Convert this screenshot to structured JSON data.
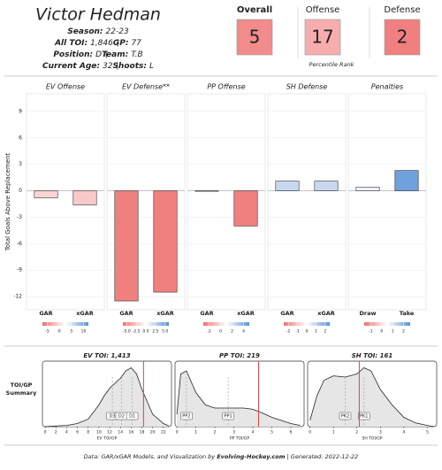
{
  "header": {
    "name": "Victor Hedman",
    "lines": [
      [
        {
          "label": "Season:",
          "value": "22-23"
        }
      ],
      [
        {
          "label": "All TOI:",
          "value": "1,846"
        },
        {
          "label": "GP:",
          "value": "77"
        }
      ],
      [
        {
          "label": "Position:",
          "value": "D"
        },
        {
          "label": "Team:",
          "value": "T.B"
        }
      ],
      [
        {
          "label": "Current Age:",
          "value": "32"
        },
        {
          "label": "Shoots:",
          "value": "L"
        }
      ]
    ]
  },
  "percentiles": {
    "caption": "Percentile Rank",
    "items": [
      {
        "label": "Overall",
        "value": 5,
        "color": "#f28b8b"
      },
      {
        "label": "Offense",
        "value": 17,
        "color": "#f7adad"
      },
      {
        "label": "Defense",
        "value": 2,
        "color": "#f08080"
      }
    ]
  },
  "summary_label": [
    "TOI/GP",
    "Summary"
  ],
  "chart_data": [
    {
      "type": "bar",
      "title": "EV Offense",
      "ylabel": "Total Goals Above Replacement",
      "categories": [
        "GAR",
        "xGAR"
      ],
      "values": [
        -0.8,
        -1.6
      ],
      "colors": [
        "#fbd3d3",
        "#f9c9c9"
      ],
      "ylim": [
        -13.5,
        11
      ],
      "yticks": [
        -12,
        -9,
        -6,
        -3,
        0,
        3,
        6,
        9
      ],
      "grid": true,
      "scale_lim": [
        -7,
        12
      ],
      "scale_ticks": [
        -5,
        0,
        5,
        10
      ]
    },
    {
      "type": "bar",
      "title": "EV Defense**",
      "categories": [
        "GAR",
        "xGAR"
      ],
      "values": [
        -12.5,
        -11.5
      ],
      "colors": [
        "#f08080",
        "#f08080"
      ],
      "ylim": [
        -13.5,
        11
      ],
      "yticks": [
        -12,
        -9,
        -6,
        -3,
        0,
        3,
        6,
        9
      ],
      "grid": true,
      "scale_lim": [
        -6,
        6
      ],
      "scale_ticks": [
        {
          "value": -5,
          "label": "-5.0"
        },
        {
          "value": -2.5,
          "label": "-2.5"
        },
        {
          "value": 0,
          "label": "0.0"
        },
        {
          "value": 2.5,
          "label": "2.5"
        },
        {
          "value": 5,
          "label": "5.0"
        }
      ]
    },
    {
      "type": "bar",
      "title": "PP Offense",
      "categories": [
        "GAR",
        "xGAR"
      ],
      "values": [
        0,
        -4
      ],
      "colors": [
        "#f5f5f5",
        "#f08080"
      ],
      "ylim": [
        -13.5,
        11
      ],
      "yticks": [
        -12,
        -9,
        -6,
        -3,
        0,
        3,
        6,
        9
      ],
      "grid": true,
      "scale_lim": [
        -3,
        5
      ],
      "scale_ticks": [
        -2,
        0,
        2,
        4
      ]
    },
    {
      "type": "bar",
      "title": "SH Defense",
      "categories": [
        "GAR",
        "xGAR"
      ],
      "values": [
        1.1,
        1.1
      ],
      "colors": [
        "#c8d7ef",
        "#c8d7ef"
      ],
      "ylim": [
        -13.5,
        11
      ],
      "yticks": [
        -12,
        -9,
        -6,
        -3,
        0,
        3,
        6,
        9
      ],
      "grid": true,
      "scale_lim": [
        -2.5,
        2.5
      ],
      "scale_ticks": [
        -2,
        -1,
        0,
        1,
        2
      ]
    },
    {
      "type": "bar",
      "title": "Penalties",
      "categories": [
        "Draw",
        "Take"
      ],
      "values": [
        0.4,
        2.3
      ],
      "colors": [
        "#eef2fa",
        "#6fa1dc"
      ],
      "ylim": [
        -13.5,
        11
      ],
      "yticks": [
        -12,
        -9,
        -6,
        -3,
        0,
        3,
        6,
        9
      ],
      "grid": true,
      "scale_lim": [
        -1.6,
        2.6
      ],
      "scale_ticks": [
        -1,
        0,
        1,
        2
      ]
    },
    {
      "type": "density",
      "title": "EV TOI: 1,413",
      "xlabel": "EV TOI/GP",
      "x": [
        0,
        2,
        4,
        6,
        8,
        10,
        11,
        12,
        13,
        14,
        15,
        16,
        17,
        18,
        19,
        20,
        22,
        23
      ],
      "values": [
        0,
        0.01,
        0.02,
        0.05,
        0.12,
        0.35,
        0.5,
        0.62,
        0.7,
        0.78,
        0.9,
        0.95,
        0.85,
        0.6,
        0.4,
        0.2,
        0.05,
        0.01
      ],
      "xlim": [
        -0.5,
        23.5
      ],
      "xticks": [
        0,
        2,
        4,
        6,
        8,
        10,
        12,
        14,
        16,
        18,
        20,
        22
      ],
      "markers": [
        {
          "label": "D3",
          "value": 12.5
        },
        {
          "label": "D2",
          "value": 14.2
        },
        {
          "label": "D1",
          "value": 16.2
        }
      ],
      "player_value": 18.3,
      "player_color": "#e04040"
    },
    {
      "type": "density",
      "title": "PP TOI: 219",
      "xlabel": "PP TOI/GP",
      "x": [
        0,
        0.2,
        0.5,
        1,
        1.5,
        2,
        2.5,
        3,
        3.5,
        4,
        4.5,
        5,
        6,
        6.5
      ],
      "values": [
        0.2,
        0.85,
        0.9,
        0.55,
        0.35,
        0.3,
        0.3,
        0.3,
        0.3,
        0.28,
        0.22,
        0.15,
        0.05,
        0.02
      ],
      "xlim": [
        -0.1,
        6.7
      ],
      "xticks": [
        0,
        1,
        2,
        3,
        4,
        5,
        6
      ],
      "markers": [
        {
          "label": "PP2",
          "value": 0.5
        },
        {
          "label": "PP1",
          "value": 2.7
        }
      ],
      "player_value": 4.3,
      "player_color": "#e04040"
    },
    {
      "type": "density",
      "title": "SH TOI: 161",
      "xlabel": "SH TOI/GP",
      "x": [
        0,
        0.3,
        0.6,
        1,
        1.5,
        2,
        2.3,
        2.6,
        3,
        3.5,
        4,
        4.5,
        5,
        5.3
      ],
      "values": [
        0.1,
        0.5,
        0.75,
        0.82,
        0.8,
        0.85,
        0.95,
        0.9,
        0.6,
        0.35,
        0.15,
        0.06,
        0.02,
        0
      ],
      "xlim": [
        -0.1,
        5.4
      ],
      "xticks": [
        0,
        1,
        2,
        3,
        4,
        5
      ],
      "markers": [
        {
          "label": "PK2",
          "value": 1.5
        },
        {
          "label": "PK1",
          "value": 2.3
        }
      ],
      "player_value": 2.1,
      "player_color": "#e04040"
    }
  ],
  "footer": [
    "Data: GAR/xGAR Models, and Visualization by ",
    "Evolving-Hockey.com",
    " | Generated: 2022-12-22"
  ]
}
